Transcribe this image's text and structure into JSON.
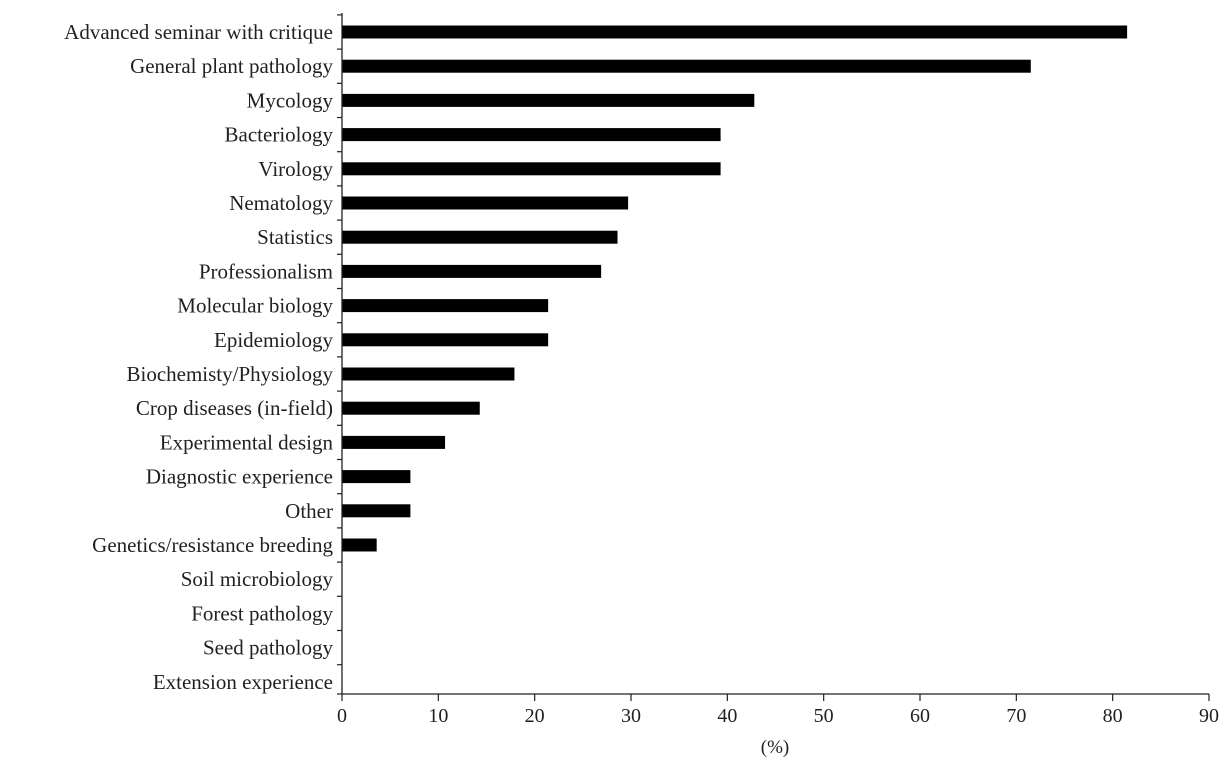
{
  "chart_data": {
    "type": "bar",
    "orientation": "horizontal",
    "categories": [
      "Advanced seminar with critique",
      "General plant pathology",
      "Mycology",
      "Bacteriology",
      "Virology",
      "Nematology",
      "Statistics",
      "Professionalism",
      "Molecular biology",
      "Epidemiology",
      "Biochemisty/Physiology",
      "Crop diseases (in-field)",
      "Experimental design",
      "Diagnostic experience",
      "Other",
      "Genetics/resistance breeding",
      "Soil microbiology",
      "Forest pathology",
      "Seed pathology",
      "Extension experience"
    ],
    "values": [
      81.5,
      71.5,
      42.8,
      39.3,
      39.3,
      29.7,
      28.6,
      26.9,
      21.4,
      21.4,
      17.9,
      14.3,
      10.7,
      7.1,
      7.1,
      3.6,
      0,
      0,
      0,
      0
    ],
    "xlabel": "(%)",
    "ylabel": "",
    "xlim": [
      0,
      90
    ],
    "xticks": [
      "0",
      "10",
      "20",
      "30",
      "40",
      "50",
      "60",
      "70",
      "80",
      "90"
    ],
    "grid": false,
    "bar_color": "#000000",
    "axis_color": "#231f20"
  }
}
